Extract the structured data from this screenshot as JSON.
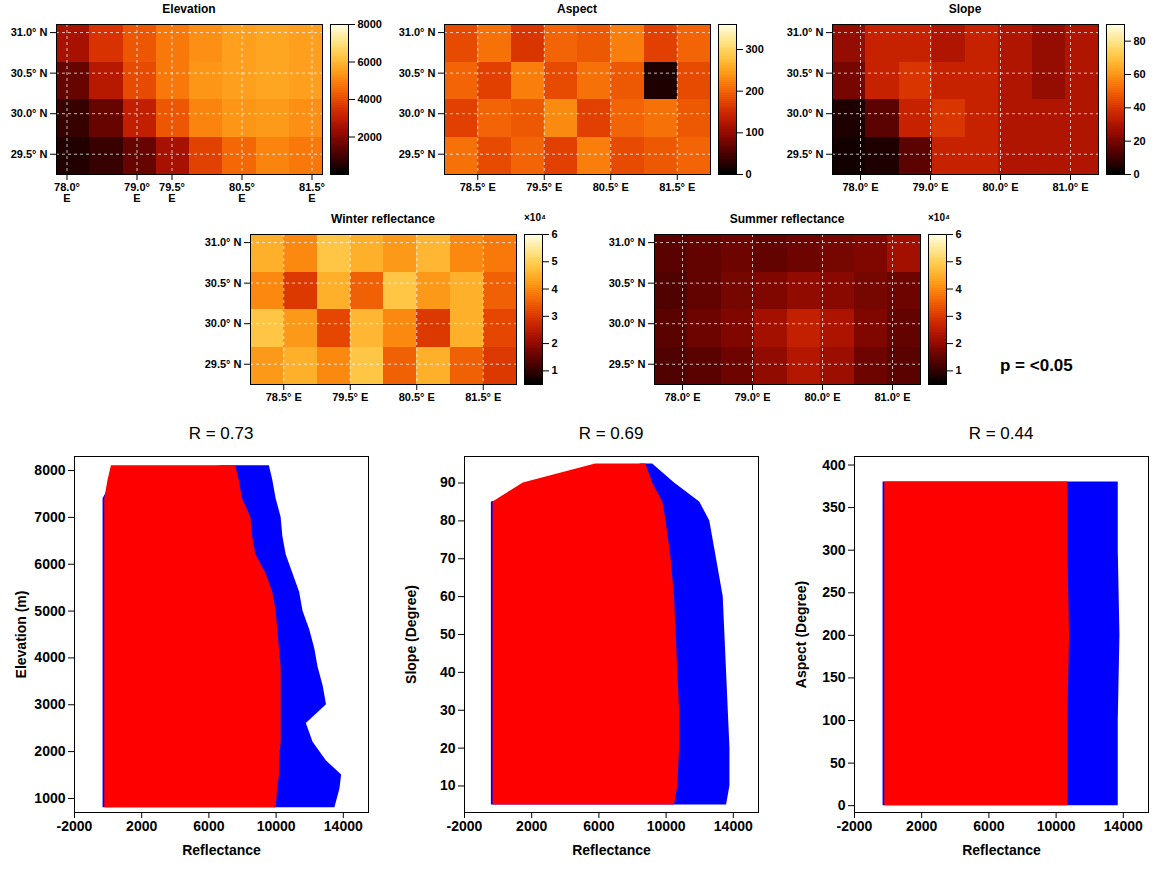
{
  "chart_data": [
    {
      "type": "heatmap",
      "title": "Elevation",
      "xlim": [
        77.85,
        81.65
      ],
      "ylim": [
        29.25,
        31.1
      ],
      "xticks": [
        {
          "value": 78.0,
          "label": "78.0° E"
        },
        {
          "value": 79.0,
          "label": "79.0° E"
        },
        {
          "value": 79.5,
          "label": "79.5° E"
        },
        {
          "value": 80.5,
          "label": "80.5° E"
        },
        {
          "value": 81.5,
          "label": "81.5° E"
        }
      ],
      "yticks": [
        {
          "value": 29.5,
          "label": "29.5° N"
        },
        {
          "value": 30.0,
          "label": "30.0° N"
        },
        {
          "value": 30.5,
          "label": "30.5° N"
        },
        {
          "value": 31.0,
          "label": "31.0° N"
        }
      ],
      "grid": true,
      "cells": [
        [
          2500,
          3500,
          4200,
          4800,
          5200,
          5500,
          5600,
          5500
        ],
        [
          1500,
          2800,
          4000,
          4800,
          5300,
          5500,
          5600,
          5500
        ],
        [
          800,
          1500,
          3000,
          4200,
          5000,
          5300,
          5400,
          5200
        ],
        [
          500,
          800,
          1500,
          2500,
          3800,
          4500,
          5000,
          4800
        ]
      ],
      "colorbar": {
        "range": [
          0,
          8000
        ],
        "ticks": [
          2000,
          4000,
          6000,
          8000
        ]
      }
    },
    {
      "type": "heatmap",
      "title": "Aspect",
      "xlim": [
        78.0,
        82.0
      ],
      "ylim": [
        29.25,
        31.1
      ],
      "xticks": [
        {
          "value": 78.5,
          "label": "78.5° E"
        },
        {
          "value": 79.5,
          "label": "79.5° E"
        },
        {
          "value": 80.5,
          "label": "80.5° E"
        },
        {
          "value": 81.5,
          "label": "81.5° E"
        }
      ],
      "yticks": [
        {
          "value": 29.5,
          "label": "29.5° N"
        },
        {
          "value": 30.0,
          "label": "30.0° N"
        },
        {
          "value": 30.5,
          "label": "30.5° N"
        },
        {
          "value": 31.0,
          "label": "31.0° N"
        }
      ],
      "grid": true,
      "cells": [
        [
          180,
          210,
          160,
          200,
          190,
          220,
          170,
          200
        ],
        [
          200,
          170,
          220,
          180,
          210,
          190,
          20,
          180
        ],
        [
          170,
          200,
          190,
          230,
          170,
          200,
          210,
          190
        ],
        [
          210,
          180,
          200,
          170,
          220,
          180,
          190,
          200
        ]
      ],
      "colorbar": {
        "range": [
          0,
          360
        ],
        "ticks": [
          0,
          100,
          200,
          300
        ]
      }
    },
    {
      "type": "heatmap",
      "title": "Slope",
      "xlim": [
        77.6,
        81.4
      ],
      "ylim": [
        29.25,
        31.1
      ],
      "xticks": [
        {
          "value": 78.0,
          "label": "78.0° E"
        },
        {
          "value": 79.0,
          "label": "79.0° E"
        },
        {
          "value": 80.0,
          "label": "80.0° E"
        },
        {
          "value": 81.0,
          "label": "81.0° E"
        }
      ],
      "yticks": [
        {
          "value": 29.5,
          "label": "29.5° N"
        },
        {
          "value": 30.0,
          "label": "30.0° N"
        },
        {
          "value": 30.5,
          "label": "30.5° N"
        },
        {
          "value": 31.0,
          "label": "31.0° N"
        }
      ],
      "grid": true,
      "cells": [
        [
          25,
          35,
          35,
          30,
          35,
          30,
          25,
          30
        ],
        [
          20,
          35,
          40,
          35,
          35,
          30,
          25,
          30
        ],
        [
          5,
          15,
          35,
          40,
          35,
          30,
          30,
          30
        ],
        [
          3,
          5,
          15,
          35,
          35,
          30,
          30,
          30
        ]
      ],
      "colorbar": {
        "range": [
          0,
          90
        ],
        "ticks": [
          0,
          20,
          40,
          60,
          80
        ]
      }
    },
    {
      "type": "heatmap",
      "title": "Winter reflectance",
      "xlim": [
        78.0,
        82.0
      ],
      "ylim": [
        29.25,
        31.1
      ],
      "xticks": [
        {
          "value": 78.5,
          "label": "78.5° E"
        },
        {
          "value": 79.5,
          "label": "79.5° E"
        },
        {
          "value": 80.5,
          "label": "80.5° E"
        },
        {
          "value": 81.5,
          "label": "81.5° E"
        }
      ],
      "yticks": [
        {
          "value": 29.5,
          "label": "29.5° N"
        },
        {
          "value": 30.0,
          "label": "30.0° N"
        },
        {
          "value": 30.5,
          "label": "30.5° N"
        },
        {
          "value": 31.0,
          "label": "31.0° N"
        }
      ],
      "grid": true,
      "cells": [
        [
          4.5,
          4.0,
          4.8,
          4.5,
          4.2,
          4.6,
          4.0,
          3.8
        ],
        [
          4.0,
          3.0,
          4.5,
          3.5,
          4.8,
          4.2,
          4.5,
          3.5
        ],
        [
          4.8,
          4.2,
          3.2,
          4.6,
          4.0,
          3.0,
          4.5,
          3.2
        ],
        [
          4.2,
          4.5,
          4.0,
          4.8,
          3.5,
          4.5,
          3.5,
          3.0
        ]
      ],
      "colorbar": {
        "range": [
          0.5,
          6
        ],
        "ticks": [
          1,
          2,
          3,
          4,
          5,
          6
        ],
        "label": "×10⁴"
      }
    },
    {
      "type": "heatmap",
      "title": "Summer reflectance",
      "xlim": [
        77.6,
        81.4
      ],
      "ylim": [
        29.25,
        31.1
      ],
      "xticks": [
        {
          "value": 78.0,
          "label": "78.0° E"
        },
        {
          "value": 79.0,
          "label": "79.0° E"
        },
        {
          "value": 80.0,
          "label": "80.0° E"
        },
        {
          "value": 81.0,
          "label": "81.0° E"
        }
      ],
      "yticks": [
        {
          "value": 29.5,
          "label": "29.5° N"
        },
        {
          "value": 30.0,
          "label": "30.0° N"
        },
        {
          "value": 30.5,
          "label": "30.5° N"
        },
        {
          "value": 31.0,
          "label": "31.0° N"
        }
      ],
      "grid": true,
      "cells": [
        [
          1.4,
          1.5,
          1.6,
          1.5,
          1.6,
          1.7,
          1.8,
          2.2
        ],
        [
          1.3,
          1.5,
          1.7,
          1.8,
          2.0,
          1.9,
          1.7,
          1.6
        ],
        [
          1.4,
          1.6,
          1.8,
          2.2,
          2.6,
          2.3,
          1.8,
          1.5
        ],
        [
          1.3,
          1.4,
          1.6,
          2.0,
          2.4,
          2.1,
          1.6,
          1.4
        ]
      ],
      "colorbar": {
        "range": [
          0.5,
          6
        ],
        "ticks": [
          1,
          2,
          3,
          4,
          5,
          6
        ],
        "label": "×10⁴"
      },
      "annotation": "p = <0.05"
    },
    {
      "type": "area",
      "title": "R = 0.73",
      "x_label": "Reflectance",
      "y_label": "Elevation (m)",
      "xlim": [
        -2000,
        15500
      ],
      "ylim": [
        700,
        8300
      ],
      "xticks": [
        -2000,
        2000,
        6000,
        10000,
        14000
      ],
      "yticks": [
        1000,
        2000,
        3000,
        4000,
        5000,
        6000,
        7000,
        8000
      ],
      "series": [
        {
          "color": "#0000ff",
          "y": [
            800,
            1200,
            1500,
            1800,
            2200,
            2600,
            3000,
            3400,
            3800,
            4200,
            4600,
            5000,
            5400,
            5800,
            6200,
            6600,
            7000,
            7400,
            7800,
            8100
          ],
          "x_low": [
            -300,
            -300,
            -300,
            -300,
            -300,
            -300,
            -300,
            -300,
            -300,
            -300,
            -300,
            -300,
            -300,
            -300,
            -300,
            -300,
            -300,
            -300,
            300,
            6800
          ],
          "x_high": [
            13500,
            13800,
            13900,
            13000,
            12200,
            11800,
            13000,
            12800,
            12500,
            12300,
            12000,
            11600,
            11400,
            11000,
            10600,
            10400,
            10300,
            10000,
            9800,
            9600
          ]
        },
        {
          "color": "#ff0000",
          "y": [
            800,
            1200,
            1500,
            1800,
            2200,
            2600,
            3000,
            3400,
            3800,
            4200,
            4600,
            5000,
            5400,
            5800,
            6200,
            6600,
            7000,
            7400,
            7800,
            8100
          ],
          "x_low": [
            -200,
            -200,
            -200,
            -200,
            -200,
            -200,
            -200,
            -200,
            -200,
            -200,
            -200,
            -200,
            -200,
            -200,
            -200,
            -200,
            -200,
            -200,
            0,
            200
          ],
          "x_high": [
            10000,
            10100,
            10200,
            10200,
            10300,
            10300,
            10300,
            10300,
            10300,
            10200,
            10100,
            10000,
            9800,
            9400,
            8800,
            8600,
            8500,
            8000,
            7800,
            7600
          ]
        }
      ]
    },
    {
      "type": "area",
      "title": "R = 0.69",
      "x_label": "Reflectance",
      "y_label": "Slope (Degree)",
      "xlim": [
        -2000,
        15500
      ],
      "ylim": [
        3,
        97
      ],
      "xticks": [
        -2000,
        2000,
        6000,
        10000,
        14000
      ],
      "yticks": [
        10,
        20,
        30,
        40,
        50,
        60,
        70,
        80,
        90
      ],
      "series": [
        {
          "color": "#0000ff",
          "y": [
            5,
            10,
            20,
            30,
            40,
            50,
            60,
            70,
            80,
            85,
            90,
            95
          ],
          "x_low": [
            -400,
            -400,
            -400,
            -400,
            -400,
            -400,
            -400,
            -400,
            -400,
            -400,
            5000,
            8500
          ],
          "x_high": [
            13600,
            13800,
            13800,
            13700,
            13600,
            13500,
            13400,
            13000,
            12600,
            12000,
            10500,
            9200
          ]
        },
        {
          "color": "#ff0000",
          "y": [
            5,
            10,
            20,
            30,
            40,
            50,
            60,
            70,
            80,
            85,
            90,
            95
          ],
          "x_low": [
            -300,
            -300,
            -300,
            -300,
            -300,
            -300,
            -300,
            -300,
            -300,
            -300,
            1500,
            5800
          ],
          "x_high": [
            10500,
            10700,
            10800,
            10800,
            10700,
            10600,
            10500,
            10300,
            10000,
            9800,
            9200,
            8800
          ]
        }
      ]
    },
    {
      "type": "area",
      "title": "R = 0.44",
      "x_label": "Reflectance",
      "y_label": "Aspect (Degree)",
      "xlim": [
        -2000,
        15500
      ],
      "ylim": [
        -8,
        410
      ],
      "xticks": [
        -2000,
        2000,
        6000,
        10000,
        14000
      ],
      "yticks": [
        0,
        50,
        100,
        150,
        200,
        250,
        300,
        350,
        400
      ],
      "series": [
        {
          "color": "#0000ff",
          "y": [
            0,
            100,
            200,
            300,
            380
          ],
          "x_low": [
            -300,
            -300,
            -300,
            -300,
            -300
          ],
          "x_high": [
            13700,
            13700,
            13800,
            13700,
            13700
          ]
        },
        {
          "color": "#ff0000",
          "y": [
            0,
            100,
            200,
            300,
            380
          ],
          "x_low": [
            -200,
            -200,
            -200,
            -200,
            -200
          ],
          "x_high": [
            10700,
            10700,
            10800,
            10700,
            10700
          ]
        }
      ]
    }
  ]
}
